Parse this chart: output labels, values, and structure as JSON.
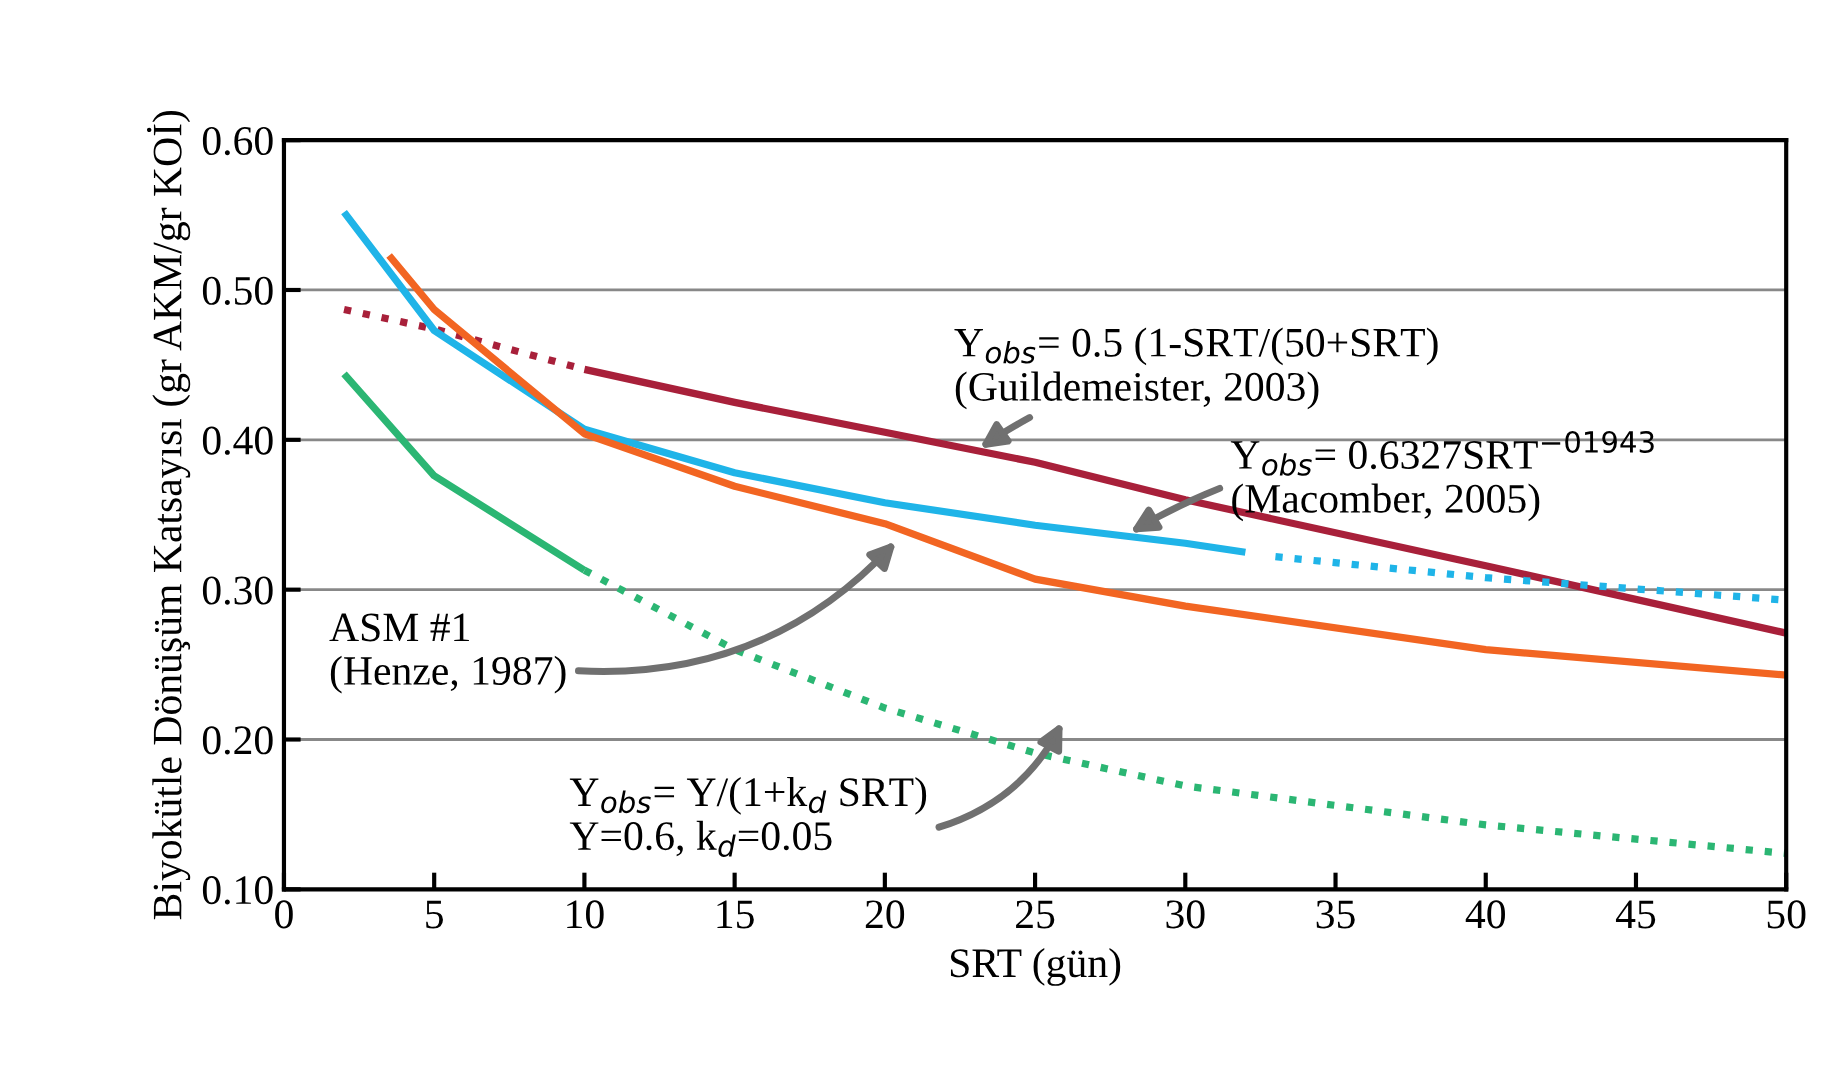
{
  "chart_data": {
    "type": "line",
    "xlabel": "SRT (gün)",
    "ylabel": "Biyokütle Dönüşüm Katsayısı (gr AKM/gr KOİ)",
    "xlim": [
      0,
      50
    ],
    "xticks": [
      0,
      5,
      10,
      15,
      20,
      25,
      30,
      35,
      40,
      45,
      50
    ],
    "ylim": [
      0.1,
      0.6
    ],
    "yticks": [
      {
        "value": 0.1,
        "label": "0.10"
      },
      {
        "value": 0.2,
        "label": "0.20"
      },
      {
        "value": 0.3,
        "label": "0.30"
      },
      {
        "value": 0.4,
        "label": "0.40"
      },
      {
        "value": 0.5,
        "label": "0.50"
      },
      {
        "value": 0.6,
        "label": "0.60"
      }
    ],
    "grid": "y",
    "marker": "none",
    "series": [
      {
        "color": "#a8203a",
        "line_style": "dotted",
        "x": [
          2,
          5,
          10
        ],
        "values": [
          0.487,
          0.474,
          0.447
        ]
      },
      {
        "color": "#a8203a",
        "line_style": "solid",
        "x": [
          10,
          15,
          20,
          25,
          30,
          40,
          50
        ],
        "values": [
          0.447,
          0.425,
          0.405,
          0.385,
          0.36,
          0.316,
          0.271
        ]
      },
      {
        "color": "#1fb4e8",
        "line_style": "solid",
        "x": [
          2,
          5,
          10,
          15,
          20,
          25,
          30,
          32
        ],
        "values": [
          0.552,
          0.473,
          0.407,
          0.378,
          0.358,
          0.343,
          0.331,
          0.325
        ]
      },
      {
        "color": "#1fb4e8",
        "line_style": "dotted",
        "x": [
          33,
          40,
          50
        ],
        "values": [
          0.322,
          0.308,
          0.293
        ]
      },
      {
        "color": "#f26522",
        "line_style": "solid",
        "x": [
          3.5,
          5,
          10,
          15,
          20,
          25,
          30,
          40,
          50
        ],
        "values": [
          0.523,
          0.487,
          0.404,
          0.369,
          0.344,
          0.307,
          0.289,
          0.26,
          0.243
        ]
      },
      {
        "color": "#2bb673",
        "line_style": "solid",
        "x": [
          2,
          5,
          10
        ],
        "values": [
          0.444,
          0.376,
          0.313
        ]
      },
      {
        "color": "#2bb673",
        "line_style": "dotted",
        "x": [
          10,
          15,
          20,
          25,
          30,
          40,
          50
        ],
        "values": [
          0.313,
          0.26,
          0.221,
          0.191,
          0.169,
          0.143,
          0.124
        ]
      }
    ],
    "annotations": [
      {
        "text": "Y$_{obs}$= 0.5 (1-SRT/(50+SRT)\n(Guildemeister, 2003)",
        "x": 23,
        "y": 0.392
      },
      {
        "text": "Y$_{obs}$= 0.6327SRT$^{−01943}$\n(Macomber, 2005)",
        "x": 28,
        "y": 0.336
      },
      "ASM #1\n(Henze, 1987)",
      "Y$_{obs}$= Y/(1+k$_{d}$ SRT)\nY=0.6, k$_{d}$=0.05"
    ]
  }
}
